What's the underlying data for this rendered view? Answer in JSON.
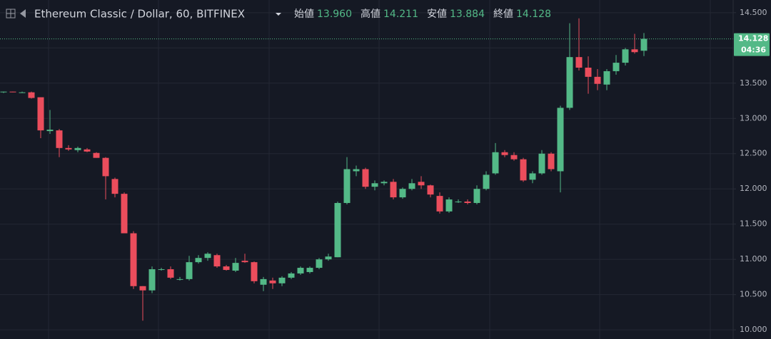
{
  "header": {
    "symbol": "Ethereum Classic / Dollar, 60, BITFINEX",
    "ohlc": [
      {
        "label": "始値",
        "value": "13.960"
      },
      {
        "label": "高値",
        "value": "14.211"
      },
      {
        "label": "安値",
        "value": "13.884"
      },
      {
        "label": "終値",
        "value": "14.128"
      }
    ]
  },
  "chart_data": {
    "type": "candlestick",
    "up_color": "#53b987",
    "down_color": "#eb4d5c",
    "ylim": [
      9.87,
      14.68
    ],
    "yticks": [
      {
        "value": 10,
        "label": "10.000"
      },
      {
        "value": 10.5,
        "label": "10.500"
      },
      {
        "value": 11,
        "label": "11.000"
      },
      {
        "value": 11.5,
        "label": "11.500"
      },
      {
        "value": 12,
        "label": "12.000"
      },
      {
        "value": 12.5,
        "label": "12.500"
      },
      {
        "value": 13,
        "label": "13.000"
      },
      {
        "value": 13.5,
        "label": "13.500"
      },
      {
        "value": 14,
        "label": "14.000"
      },
      {
        "value": 14.5,
        "label": "14.500"
      }
    ],
    "grid": true,
    "last_price": {
      "value": 14.128,
      "label": "14.128"
    },
    "countdown": "04:36",
    "open": [
      13.37,
      13.38,
      13.37,
      13.37,
      13.3,
      12.82,
      12.83,
      12.58,
      12.55,
      12.56,
      12.51,
      12.44,
      12.14,
      11.93,
      11.37,
      10.62,
      10.56,
      10.86,
      10.86,
      10.72,
      10.72,
      10.96,
      11.02,
      11.06,
      10.9,
      10.84,
      10.98,
      10.96,
      10.64,
      10.7,
      10.66,
      10.74,
      10.8,
      10.82,
      10.88,
      11.0,
      11.03,
      11.8,
      12.25,
      12.28,
      12.03,
      12.08,
      12.1,
      11.88,
      12.0,
      12.1,
      12.05,
      11.9,
      11.68,
      11.82,
      11.82,
      11.8,
      12.0,
      12.22,
      12.52,
      12.48,
      12.42,
      12.13,
      12.22,
      12.5,
      12.25,
      13.15,
      13.87,
      13.72,
      13.59,
      13.48,
      13.67,
      13.79,
      13.98,
      13.96
    ],
    "high": [
      13.38,
      13.38,
      13.38,
      13.38,
      13.3,
      13.12,
      12.85,
      12.62,
      12.6,
      12.58,
      12.52,
      12.45,
      12.16,
      11.95,
      11.4,
      10.62,
      10.9,
      10.88,
      10.9,
      10.75,
      11.05,
      11.06,
      11.1,
      11.08,
      10.92,
      11.02,
      11.08,
      10.97,
      10.75,
      10.74,
      10.76,
      10.82,
      10.9,
      10.9,
      11.02,
      11.08,
      11.82,
      12.45,
      12.33,
      12.3,
      12.12,
      12.12,
      12.14,
      12.02,
      12.14,
      12.18,
      12.06,
      11.95,
      11.88,
      11.85,
      11.85,
      12.05,
      12.25,
      12.65,
      12.55,
      12.52,
      12.44,
      12.25,
      12.55,
      12.52,
      13.18,
      14.35,
      14.42,
      13.88,
      13.7,
      13.7,
      13.9,
      14.0,
      14.2,
      14.211
    ],
    "low": [
      13.36,
      13.37,
      13.36,
      13.28,
      12.72,
      12.78,
      12.45,
      12.54,
      12.52,
      12.52,
      12.44,
      11.85,
      11.88,
      11.37,
      10.58,
      10.13,
      10.52,
      10.84,
      10.72,
      10.7,
      10.7,
      10.94,
      10.98,
      10.88,
      10.84,
      10.82,
      10.95,
      10.66,
      10.55,
      10.58,
      10.62,
      10.72,
      10.78,
      10.8,
      10.86,
      10.98,
      11.03,
      11.78,
      12.18,
      12.0,
      11.98,
      12.05,
      11.85,
      11.86,
      11.98,
      12.0,
      11.88,
      11.65,
      11.66,
      11.8,
      11.78,
      11.78,
      11.98,
      12.2,
      12.45,
      12.4,
      12.1,
      12.08,
      12.2,
      12.25,
      11.95,
      13.12,
      13.68,
      13.35,
      13.4,
      13.4,
      13.62,
      13.75,
      13.92,
      13.884
    ],
    "close": [
      13.38,
      13.37,
      13.37,
      13.29,
      12.83,
      12.84,
      12.58,
      12.56,
      12.58,
      12.53,
      12.44,
      12.18,
      11.93,
      11.37,
      10.62,
      10.56,
      10.86,
      10.86,
      10.74,
      10.72,
      10.96,
      11.02,
      11.08,
      10.9,
      10.85,
      10.95,
      10.96,
      10.69,
      10.72,
      10.66,
      10.74,
      10.8,
      10.88,
      10.88,
      11.0,
      11.04,
      11.8,
      12.28,
      12.28,
      12.03,
      12.08,
      12.1,
      11.88,
      12.0,
      12.08,
      12.05,
      11.92,
      11.68,
      11.85,
      11.82,
      11.8,
      12.0,
      12.2,
      12.52,
      12.48,
      12.42,
      12.12,
      12.22,
      12.5,
      12.28,
      13.15,
      13.87,
      13.72,
      13.59,
      13.49,
      13.67,
      13.79,
      13.98,
      13.94,
      14.128
    ]
  }
}
